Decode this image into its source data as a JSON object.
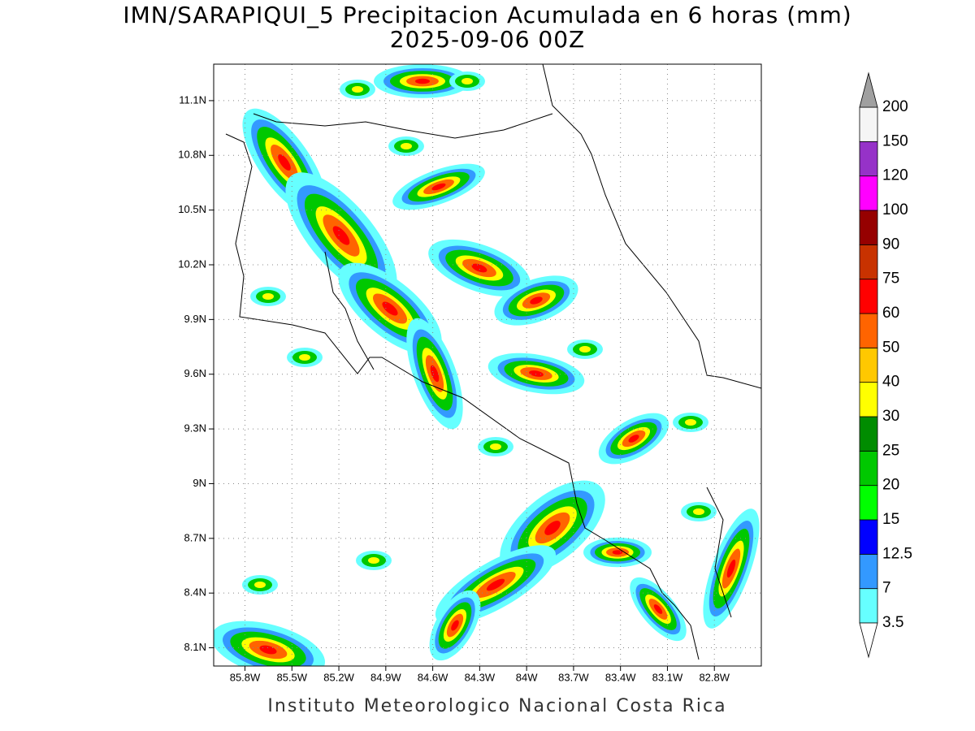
{
  "title": "IMN/SARAPIQUI_5 Precipitacion Acumulada en 6 horas (mm)",
  "subtitle": "2025-09-06 00Z",
  "footer": "Instituto Meteorologico Nacional Costa Rica",
  "map": {
    "latlim": [
      8.0,
      11.3
    ],
    "lonlim": [
      -86.0,
      -82.5
    ],
    "grid": true,
    "lat_ticks": [
      {
        "value": 8.1,
        "label": "8.1N"
      },
      {
        "value": 8.4,
        "label": "8.4N"
      },
      {
        "value": 8.7,
        "label": "8.7N"
      },
      {
        "value": 9.0,
        "label": "9N"
      },
      {
        "value": 9.3,
        "label": "9.3N"
      },
      {
        "value": 9.6,
        "label": "9.6N"
      },
      {
        "value": 9.9,
        "label": "9.9N"
      },
      {
        "value": 10.2,
        "label": "10.2N"
      },
      {
        "value": 10.5,
        "label": "10.5N"
      },
      {
        "value": 10.8,
        "label": "10.8N"
      },
      {
        "value": 11.1,
        "label": "11.1N"
      }
    ],
    "lon_ticks": [
      {
        "value": -85.8,
        "label": "85.8W"
      },
      {
        "value": -85.5,
        "label": "85.5W"
      },
      {
        "value": -85.2,
        "label": "85.2W"
      },
      {
        "value": -84.9,
        "label": "84.9W"
      },
      {
        "value": -84.6,
        "label": "84.6W"
      },
      {
        "value": -84.3,
        "label": "84.3W"
      },
      {
        "value": -84.0,
        "label": "84W"
      },
      {
        "value": -83.7,
        "label": "83.7W"
      },
      {
        "value": -83.4,
        "label": "83.4W"
      },
      {
        "value": -83.1,
        "label": "83.1W"
      },
      {
        "value": -82.8,
        "label": "82.8W"
      }
    ]
  },
  "colorbar": {
    "levels": [
      3.5,
      7,
      12.5,
      15,
      20,
      25,
      30,
      40,
      50,
      60,
      75,
      90,
      100,
      120,
      150,
      200
    ],
    "colors": [
      "#66ffff",
      "#3399ff",
      "#0000ff",
      "#00ff00",
      "#00c800",
      "#008c00",
      "#ffff00",
      "#ffc800",
      "#ff6400",
      "#ff0000",
      "#c83200",
      "#960000",
      "#ff00ff",
      "#9632c8",
      "#f5f5f5"
    ],
    "under_color": "#ffffff",
    "over_color": "#a0a0a0"
  }
}
